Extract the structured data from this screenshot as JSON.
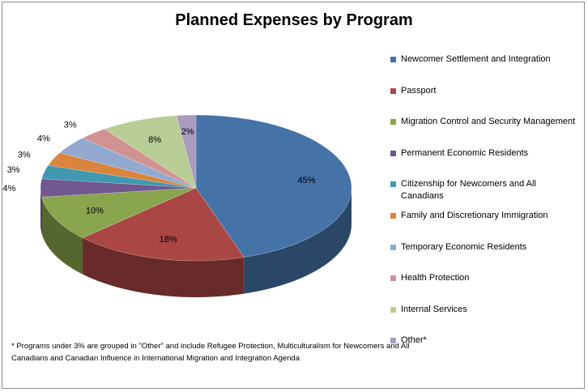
{
  "chart_data": {
    "type": "pie",
    "title": "Planned Expenses by Program",
    "slices": [
      {
        "label": "Newcomer Settlement and Integration",
        "value": 45,
        "color": "#4572A7"
      },
      {
        "label": "Passport",
        "value": 18,
        "color": "#AA4643"
      },
      {
        "label": "Migration Control and Security Management",
        "value": 10,
        "color": "#89A54E"
      },
      {
        "label": "Permanent Economic Residents",
        "value": 4,
        "color": "#71588F"
      },
      {
        "label": "Citizenship for Newcomers and All Canadians",
        "value": 3,
        "color": "#4198AF"
      },
      {
        "label": "Family and Discretionary Immigration",
        "value": 3,
        "color": "#DB843D"
      },
      {
        "label": "Temporary Economic Residents",
        "value": 4,
        "color": "#93A9CF"
      },
      {
        "label": "Health Protection",
        "value": 3,
        "color": "#D19392"
      },
      {
        "label": "Internal Services",
        "value": 8,
        "color": "#B9CD96"
      },
      {
        "label": "Other*",
        "value": 2,
        "color": "#A99BBD"
      }
    ],
    "value_suffix": "%",
    "legend_position": "right",
    "style": "3d-pie"
  },
  "footnote": "* Programs under 3% are grouped in \"Other\" and include Refugee Protection, Multiculturalism for Newcomers and All Canadians and Canadian Influence in International Migration and Integration Agenda"
}
